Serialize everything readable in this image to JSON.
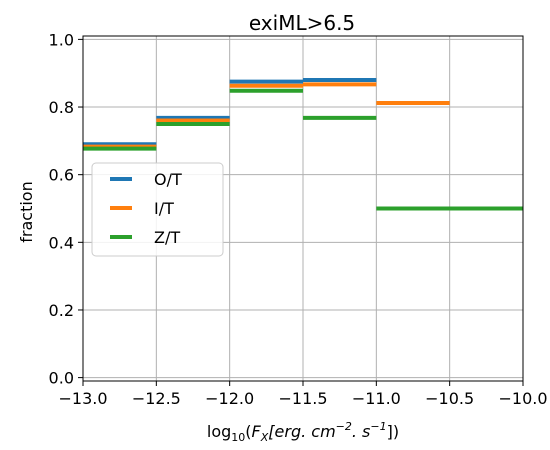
{
  "chart_data": {
    "type": "step",
    "title": "exiML>6.5",
    "ylabel": "fraction",
    "xlabel_parts": {
      "prefix": "log",
      "subscript": "10",
      "open": "(",
      "var": "F",
      "var_sub": "X",
      "unit_open": "[erg. cm",
      "exp1": "−2",
      "unit_mid": ". s",
      "exp2": "−1",
      "unit_close": "])"
    },
    "xlim": [
      -13.0,
      -10.0
    ],
    "ylim": [
      -0.01,
      1.01
    ],
    "xticks": [
      -13.0,
      -12.5,
      -12.0,
      -11.5,
      -11.0,
      -10.5,
      -10.0
    ],
    "xtick_labels": [
      "−13.0",
      "−12.5",
      "−12.0",
      "−11.5",
      "−11.0",
      "−10.5",
      "−10.0"
    ],
    "yticks": [
      0.0,
      0.2,
      0.4,
      0.6,
      0.8,
      1.0
    ],
    "ytick_labels": [
      "0.0",
      "0.2",
      "0.4",
      "0.6",
      "0.8",
      "1.0"
    ],
    "grid": true,
    "legend_position": "center-left",
    "series": [
      {
        "name": "O/T",
        "color": "#1f77b4",
        "segments": [
          {
            "x0": -13.0,
            "x1": -12.5,
            "y": 0.69
          },
          {
            "x0": -12.5,
            "x1": -12.0,
            "y": 0.768
          },
          {
            "x0": -12.0,
            "x1": -11.5,
            "y": 0.875
          },
          {
            "x0": -11.5,
            "x1": -11.0,
            "y": 0.88
          }
        ]
      },
      {
        "name": "I/T",
        "color": "#ff7f0e",
        "segments": [
          {
            "x0": -13.0,
            "x1": -12.5,
            "y": 0.683
          },
          {
            "x0": -12.5,
            "x1": -12.0,
            "y": 0.76
          },
          {
            "x0": -12.0,
            "x1": -11.5,
            "y": 0.863
          },
          {
            "x0": -11.5,
            "x1": -11.0,
            "y": 0.867
          },
          {
            "x0": -11.0,
            "x1": -10.5,
            "y": 0.812
          }
        ]
      },
      {
        "name": "Z/T",
        "color": "#2ca02c",
        "segments": [
          {
            "x0": -13.0,
            "x1": -12.5,
            "y": 0.677
          },
          {
            "x0": -12.5,
            "x1": -12.0,
            "y": 0.75
          },
          {
            "x0": -12.0,
            "x1": -11.5,
            "y": 0.848
          },
          {
            "x0": -11.5,
            "x1": -11.0,
            "y": 0.768
          },
          {
            "x0": -11.0,
            "x1": -10.0,
            "y": 0.5
          }
        ]
      }
    ]
  }
}
